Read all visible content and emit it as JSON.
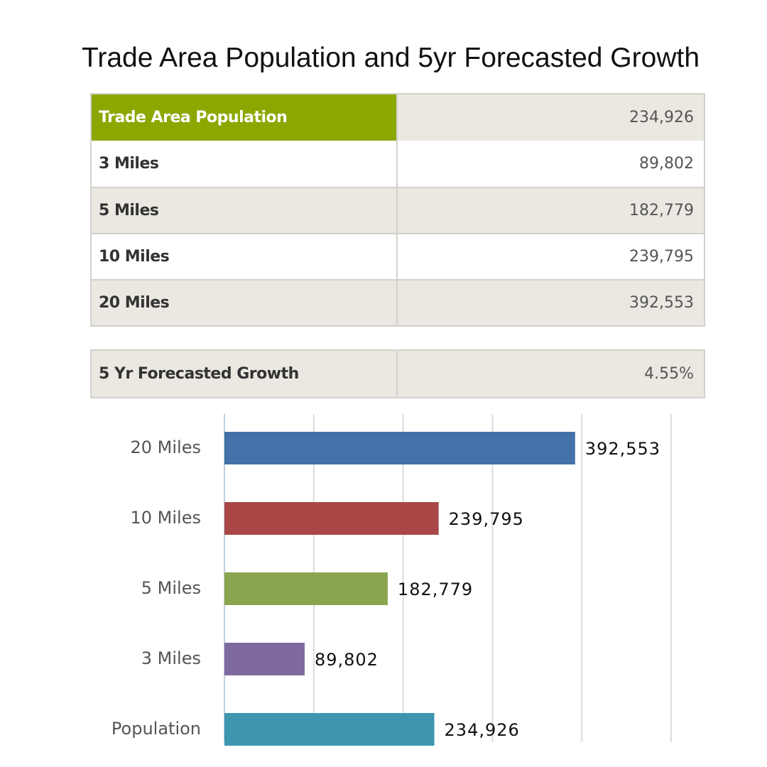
{
  "title": "Trade Area Population and 5yr Forecasted Growth",
  "table": {
    "header": [
      "Trade Area Population",
      "234,926"
    ],
    "rows": [
      [
        "3 Miles",
        "89,802"
      ],
      [
        "5 Miles",
        "182,779"
      ],
      [
        "10 Miles",
        "239,795"
      ],
      [
        "20 Miles",
        "392,553"
      ]
    ]
  },
  "growth": [
    "5 Yr Forecasted Growth",
    "4.55%"
  ],
  "chart_data": {
    "type": "bar",
    "orientation": "horizontal",
    "categories": [
      "20 Miles",
      "10 Miles",
      "5 Miles",
      "3 Miles",
      "Population"
    ],
    "values": [
      392553,
      239795,
      182779,
      89802,
      234926
    ],
    "value_labels": [
      "392,553",
      "239,795",
      "182,779",
      "89,802",
      "234,926"
    ],
    "colors": [
      "#4472a8",
      "#a84745",
      "#89a54e",
      "#7f6a9e",
      "#3d96ae"
    ],
    "xlim": [
      0,
      500000
    ],
    "xticks": [
      0,
      100000,
      200000,
      300000,
      400000,
      500000
    ],
    "grid": true
  }
}
